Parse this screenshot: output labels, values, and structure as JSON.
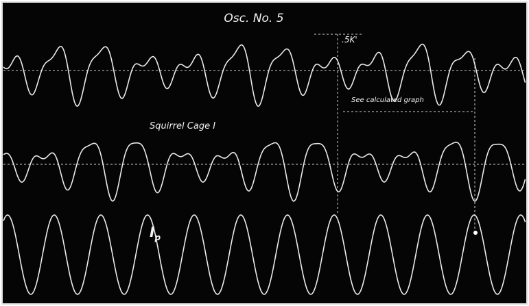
{
  "labels": {
    "title": "Osc. No. 5",
    "marker": ".5K'",
    "note": "See calculated graph",
    "trace_2": "Squirrel Cage I",
    "trace_3_symbol": "I",
    "trace_3_subscript": "p"
  }
}
